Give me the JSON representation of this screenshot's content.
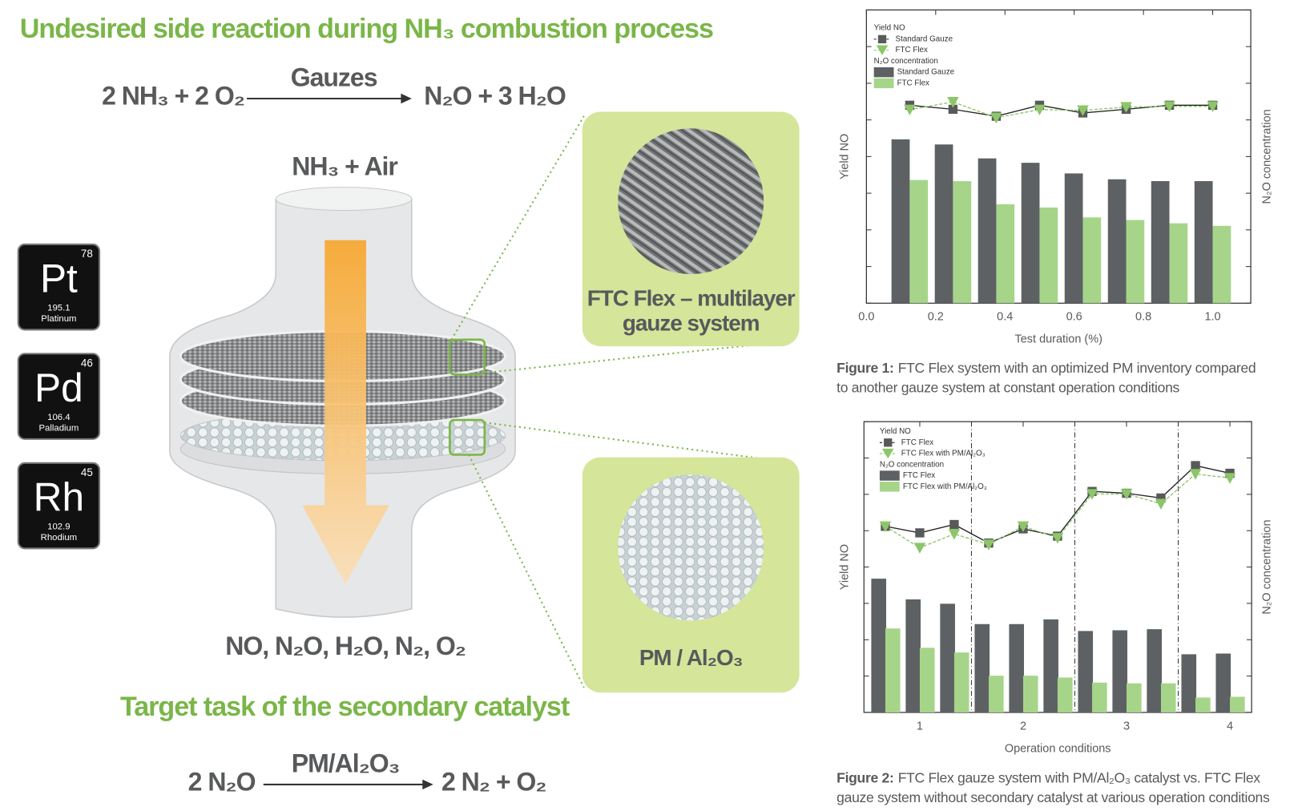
{
  "diagram": {
    "title": "Undesired side reaction during NH₃ combustion process",
    "reaction1": {
      "left": "2 NH₃ + 2 O₂",
      "catalyst": "Gauzes",
      "right": "N₂O + 3 H₂O"
    },
    "inlet": "NH₃ + Air",
    "outlet": "NO, N₂O, H₂O, N₂, O₂",
    "title2": "Target task of the secondary catalyst",
    "reaction2": {
      "left": "2 N₂O",
      "catalyst": "PM/Al₂O₃",
      "right": "2 N₂ + O₂"
    },
    "callouts": [
      {
        "lines": [
          "FTC Flex – multilayer",
          "gauze system"
        ]
      },
      {
        "lines": [
          "PM / Al₂O₃"
        ]
      }
    ],
    "elements": [
      {
        "number": "78",
        "symbol": "Pt",
        "mass": "195.1",
        "name": "Platinum"
      },
      {
        "number": "46",
        "symbol": "Pd",
        "mass": "106.4",
        "name": "Palladium"
      },
      {
        "number": "45",
        "symbol": "Rh",
        "mass": "102.9",
        "name": "Rhodium"
      }
    ]
  },
  "chart_data": [
    {
      "type": "bar",
      "xlabel": "Test duration (%)",
      "ylabel": "Yield NO",
      "y2label": "N₂O concentration",
      "x": [
        0.125,
        0.25,
        0.375,
        0.5,
        0.625,
        0.75,
        0.875,
        1.0
      ],
      "xlim": [
        0,
        1.11
      ],
      "xticks": [
        {
          "value": 0,
          "label": "0.0"
        },
        0.2,
        0.4,
        0.6,
        0.8,
        {
          "value": 1,
          "label": "1.0"
        }
      ],
      "ylim": [
        0,
        8
      ],
      "yticks": [
        0,
        1,
        2,
        3,
        4,
        5,
        6,
        7,
        8
      ],
      "y2lim": [
        0,
        8
      ],
      "y2ticks": [
        0,
        1,
        2,
        3,
        4,
        5,
        6,
        7,
        8
      ],
      "legend": "upper left",
      "caption": {
        "label": "Figure 1:",
        "lines": [
          "FTC Flex system with an optimized PM inventory compared",
          "to another gauze system at constant operation conditions"
        ]
      },
      "series": [
        {
          "name": "Standard Gauze",
          "type": "line",
          "marker": "square",
          "color": "#58595b",
          "values": [
            5.4,
            5.29,
            5.1,
            5.4,
            5.19,
            5.29,
            5.4,
            5.4
          ]
        },
        {
          "name": "FTC Flex",
          "type": "line",
          "marker": "triangle",
          "color": "#8cc668",
          "values": [
            5.28,
            5.49,
            5.06,
            5.28,
            5.26,
            5.35,
            5.37,
            5.37
          ]
        },
        {
          "name": "Standard Gauze",
          "type": "bar",
          "axis": "y2",
          "color": "#5d6163",
          "values": [
            4.47,
            4.33,
            3.95,
            3.83,
            3.54,
            3.38,
            3.33,
            3.33
          ]
        },
        {
          "name": "FTC Flex",
          "type": "bar",
          "axis": "y2",
          "color": "#a6d58a",
          "values": [
            3.36,
            3.33,
            2.7,
            2.61,
            2.34,
            2.27,
            2.18,
            2.11
          ]
        }
      ]
    },
    {
      "type": "bar",
      "xlabel": "Operation conditions",
      "ylabel": "Yield NO",
      "y2label": "N₂O concentration",
      "x": [
        0.667,
        1,
        1.333,
        1.667,
        2,
        2.333,
        2.667,
        3,
        3.333,
        3.667,
        4
      ],
      "xlim": [
        0.46,
        4.21
      ],
      "xticks": [
        1,
        2,
        3,
        4
      ],
      "vlines": [
        1.5,
        2.5,
        3.5
      ],
      "ylim": [
        0,
        8
      ],
      "yticks": [
        0,
        1,
        2,
        3,
        4,
        5,
        6,
        7,
        8
      ],
      "y2lim": [
        0,
        8
      ],
      "y2ticks": [
        0,
        1,
        2,
        3,
        4,
        5,
        6,
        7,
        8
      ],
      "legend": "upper left",
      "caption": {
        "label": "Figure 2:",
        "lines": [
          "FTC Flex gauze system with PM/Al₂O₃ catalyst vs. FTC Flex",
          "gauze system without secondary catalyst at various operation conditions"
        ]
      },
      "series": [
        {
          "name": "FTC Flex",
          "type": "line",
          "marker": "square",
          "color": "#58595b",
          "values": [
            5.12,
            4.94,
            5.17,
            4.66,
            5.05,
            4.85,
            6.08,
            6.03,
            5.9,
            6.79,
            6.58
          ]
        },
        {
          "name": "FTC Flex with PM/Al₂O₃",
          "type": "line",
          "marker": "triangle",
          "color": "#8cc668",
          "values": [
            5.12,
            4.53,
            4.91,
            4.62,
            5.12,
            4.8,
            6.01,
            6.01,
            5.74,
            6.56,
            6.45
          ]
        },
        {
          "name": "FTC Flex",
          "type": "bar",
          "axis": "y2",
          "color": "#5d6163",
          "values": [
            3.68,
            3.11,
            2.99,
            2.43,
            2.43,
            2.56,
            2.24,
            2.26,
            2.29,
            1.6,
            1.62
          ]
        },
        {
          "name": "FTC Flex with PM/Al₂O₃",
          "type": "bar",
          "axis": "y2",
          "color": "#a6d58a",
          "values": [
            2.31,
            1.78,
            1.65,
            1.01,
            1.01,
            0.96,
            0.82,
            0.8,
            0.8,
            0.41,
            0.43
          ]
        }
      ]
    }
  ]
}
